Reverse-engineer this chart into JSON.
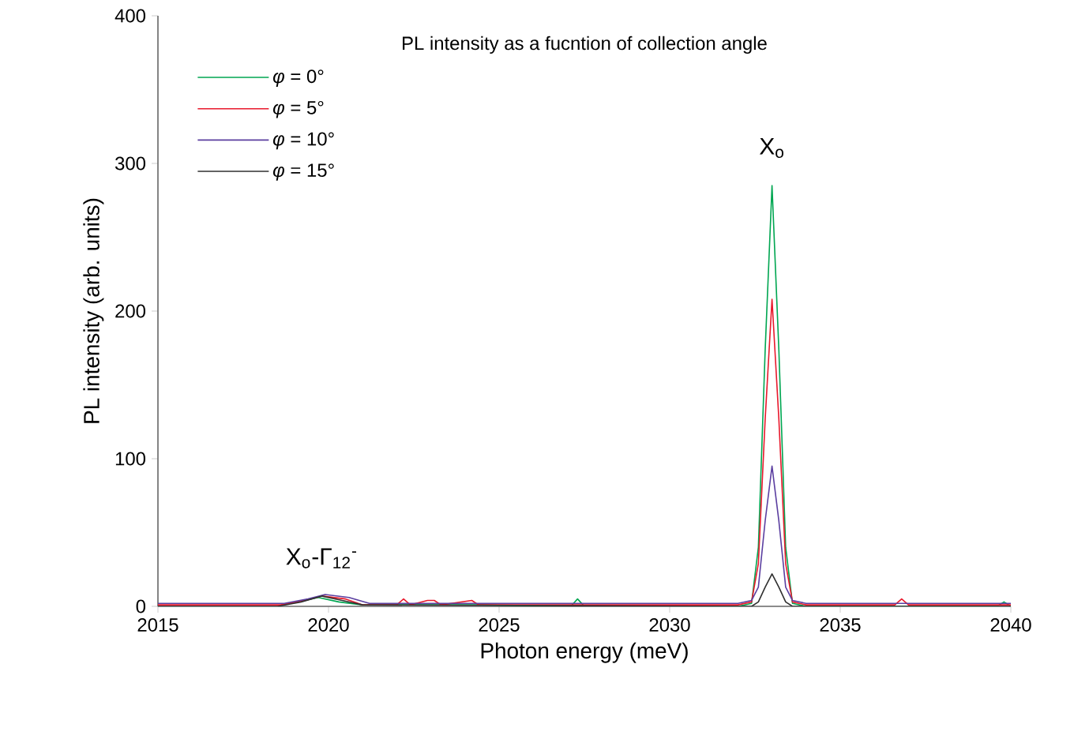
{
  "chart_data": {
    "type": "line",
    "title": "PL intensity as a fucntion of collection angle",
    "xlabel": "Photon energy (meV)",
    "ylabel": "PL intensity (arb. units)",
    "xlim": [
      2015,
      2040
    ],
    "ylim": [
      0,
      400
    ],
    "xticks": [
      2015,
      2020,
      2025,
      2030,
      2035,
      2040
    ],
    "yticks": [
      0,
      100,
      200,
      300,
      400
    ],
    "legend": "top left",
    "annotations": [
      {
        "text": "X$_{o}$",
        "x": 2033,
        "y": 285
      },
      {
        "text": "X$_{o}$-Γ$_{12}$$^{-}$",
        "x": 2019.8,
        "y": 7
      }
    ],
    "series": [
      {
        "name": "*φ* = 0°",
        "color": "#00a651",
        "x": [
          2019.1,
          2019.7,
          2020.3,
          2021,
          2024.5,
          2027.1,
          2027.3,
          2027.5,
          2032,
          2032.4,
          2032.6,
          2032.8,
          2033,
          2033.2,
          2033.4,
          2033.6,
          2034,
          2039.6,
          2039.8,
          2040
        ],
        "values": [
          3,
          6,
          3,
          1,
          1,
          0,
          5,
          0,
          0,
          2,
          40,
          174,
          285,
          174,
          40,
          2,
          0,
          0,
          3,
          0
        ]
      },
      {
        "name": "*φ* = 5°",
        "color": "#e8192c",
        "x": [
          2015,
          2018.6,
          2019.3,
          2019.8,
          2020.5,
          2021,
          2022,
          2022.2,
          2022.4,
          2022.9,
          2023.1,
          2023.3,
          2024.2,
          2024.4,
          2032,
          2032.4,
          2032.6,
          2032.8,
          2033,
          2033.2,
          2033.4,
          2033.6,
          2034,
          2036.6,
          2036.8,
          2037,
          2040
        ],
        "values": [
          1,
          1,
          4,
          7,
          5,
          1,
          1,
          5,
          1,
          4,
          4,
          1,
          4,
          1,
          1,
          3,
          29,
          127,
          208,
          127,
          29,
          3,
          1,
          1,
          5,
          1,
          1
        ]
      },
      {
        "name": "*φ* = 10°",
        "color": "#5b3fa0",
        "x": [
          2015,
          2018.7,
          2019.4,
          2019.9,
          2020.6,
          2021.2,
          2032,
          2032.4,
          2032.6,
          2032.8,
          2033,
          2033.2,
          2033.4,
          2033.6,
          2034,
          2040
        ],
        "values": [
          2,
          2,
          5,
          8,
          6,
          2,
          2,
          4,
          13,
          58,
          95,
          58,
          13,
          4,
          2,
          2
        ]
      },
      {
        "name": "*φ* = 15°",
        "color": "#303030",
        "x": [
          2015,
          2018.5,
          2019.2,
          2019.8,
          2020.4,
          2021,
          2032,
          2032.4,
          2032.6,
          2032.8,
          2033,
          2033.2,
          2033.4,
          2033.6,
          2034,
          2040
        ],
        "values": [
          0,
          0,
          3,
          7,
          4,
          1,
          0,
          0,
          3,
          13,
          22,
          13,
          3,
          0,
          0,
          0
        ]
      }
    ]
  }
}
